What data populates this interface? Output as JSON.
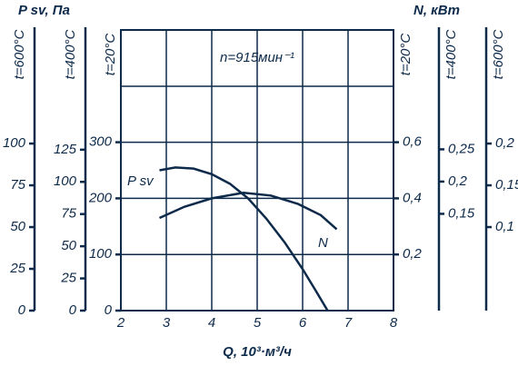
{
  "chart_data": {
    "type": "line",
    "title": "n=915мин⁻¹",
    "x_label": "Q, 10³·м³/ч",
    "y_label": "P sv, Па",
    "y2_label": "N, кВт",
    "y_axis_title": "t=20°C",
    "y2_axis_title": "t=20°C",
    "xlim": [
      2,
      8
    ],
    "xticks": [
      2,
      3,
      4,
      5,
      6,
      7,
      8
    ],
    "ylim": [
      0,
      500
    ],
    "yticks": [
      0,
      100,
      200,
      300
    ],
    "y2lim": [
      0,
      1
    ],
    "y2ticks": [
      {
        "value": 0.2,
        "label": "0,2"
      },
      {
        "value": 0.4,
        "label": "0,4"
      },
      {
        "value": 0.6,
        "label": "0,6"
      }
    ],
    "grid": true,
    "color": "#0d2a4a",
    "series": [
      {
        "name": "P sv",
        "color": "#0d2a4a",
        "x": [
          2.85,
          3.2,
          3.6,
          4.0,
          4.4,
          4.8,
          5.2,
          5.6,
          6.0,
          6.3,
          6.55
        ],
        "values": [
          250,
          255,
          253,
          243,
          226,
          200,
          164,
          122,
          74,
          34,
          0
        ]
      },
      {
        "name": "N",
        "color": "#0d2a4a",
        "axis": "y2",
        "x": [
          2.85,
          3.4,
          4.0,
          4.7,
          5.3,
          5.9,
          6.4,
          6.75
        ],
        "values": [
          0.33,
          0.37,
          0.4,
          0.42,
          0.41,
          0.38,
          0.34,
          0.29
        ]
      }
    ],
    "extra_axes": [
      {
        "title": "t=600°C",
        "side": "left",
        "ylim": [
          0,
          168
        ],
        "yticks": [
          0,
          25,
          50,
          75,
          100
        ]
      },
      {
        "title": "t=400°C",
        "side": "left",
        "ylim": [
          0,
          218
        ],
        "yticks": [
          0,
          25,
          50,
          75,
          100,
          125
        ]
      },
      {
        "title": "t=400°C",
        "side": "right",
        "ylim": [
          0,
          0.435
        ],
        "yticks": [
          {
            "value": 0.15,
            "label": "0,15"
          },
          {
            "value": 0.2,
            "label": "0,2"
          },
          {
            "value": 0.25,
            "label": "0,25"
          }
        ]
      },
      {
        "title": "t=600°C",
        "side": "right",
        "ylim": [
          0,
          0.336
        ],
        "yticks": [
          {
            "value": 0.1,
            "label": "0,1"
          },
          {
            "value": 0.15,
            "label": "0,15"
          },
          {
            "value": 0.2,
            "label": "0,2"
          }
        ]
      }
    ]
  }
}
